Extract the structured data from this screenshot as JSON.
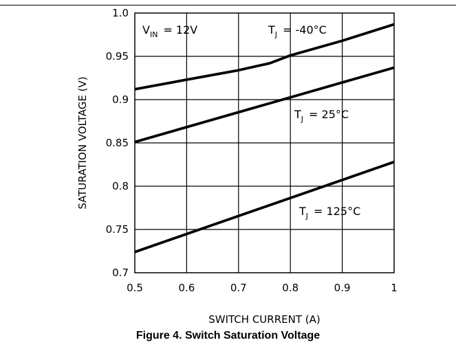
{
  "caption": "Figure 4. Switch Saturation Voltage",
  "chart_data": {
    "type": "line",
    "title": "",
    "xlabel": "SWITCH CURRENT (A)",
    "ylabel": "SATURATION VOLTAGE (V)",
    "xlim": [
      0.5,
      1.0
    ],
    "ylim": [
      0.7,
      1.0
    ],
    "xticks": [
      "0.5",
      "0.6",
      "0.7",
      "0.8",
      "0.9",
      "1"
    ],
    "yticks": [
      "0.7",
      "0.75",
      "0.8",
      "0.85",
      "0.9",
      "0.95",
      "1.0"
    ],
    "grid": true,
    "annotations": {
      "vin": {
        "main": "V",
        "sub": "IN",
        "rest": "= 12V"
      }
    },
    "series": [
      {
        "name": "TJ = -40°C",
        "label": {
          "main": "T",
          "sub": "J",
          "rest": "= -40°C"
        },
        "x": [
          0.5,
          0.6,
          0.7,
          0.76,
          0.8,
          0.9,
          1.0
        ],
        "y": [
          0.912,
          0.923,
          0.934,
          0.942,
          0.951,
          0.968,
          0.987
        ]
      },
      {
        "name": "TJ = 25°C",
        "label": {
          "main": "T",
          "sub": "J",
          "rest": "= 25°C"
        },
        "x": [
          0.5,
          1.0
        ],
        "y": [
          0.851,
          0.937
        ]
      },
      {
        "name": "TJ = 125°C",
        "label": {
          "main": "T",
          "sub": "J",
          "rest": "= 125°C"
        },
        "x": [
          0.5,
          1.0
        ],
        "y": [
          0.724,
          0.828
        ]
      }
    ]
  }
}
